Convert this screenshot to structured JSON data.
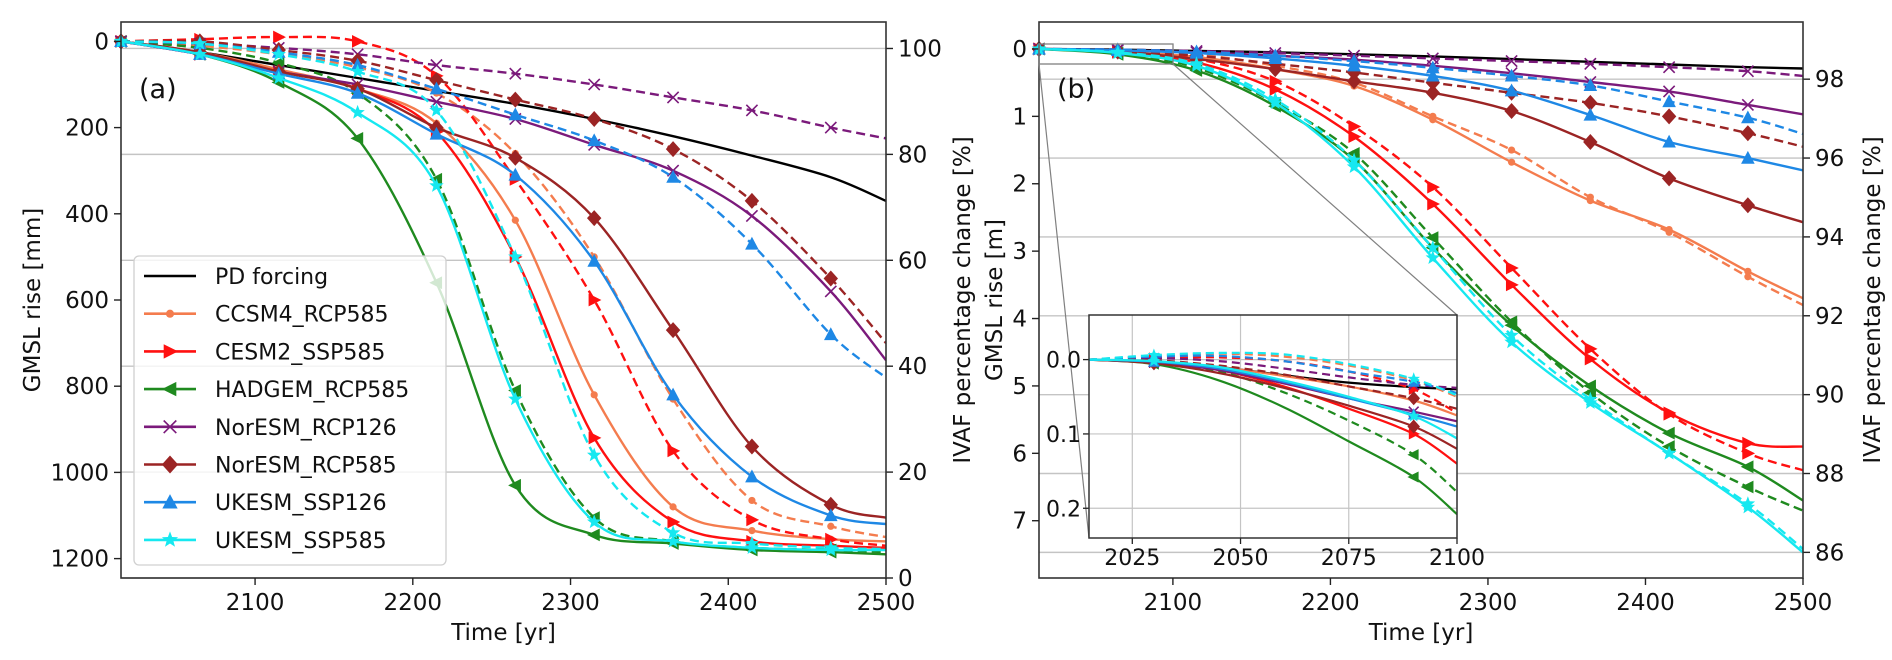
{
  "chart_data": [
    {
      "id": "a",
      "type": "line",
      "panel_label": "(a)",
      "xlabel": "Time [yr]",
      "ylabel": "GMSL rise [mm]",
      "ylabel_right": "IVAF percentage change [%]",
      "xlim": [
        2015,
        2500
      ],
      "ylim": [
        -45,
        1245
      ],
      "y_inverted": true,
      "xticks": [
        2100,
        2200,
        2300,
        2400,
        2500
      ],
      "yticks": [
        0,
        200,
        400,
        600,
        800,
        1000,
        1200
      ],
      "ylim_right": [
        0,
        105
      ],
      "yticks_right": [
        0,
        20,
        40,
        60,
        80,
        100
      ],
      "grid": "right-axis horizontal",
      "legend_position": "lower-left",
      "x": [
        2015,
        2065,
        2115,
        2165,
        2215,
        2265,
        2315,
        2365,
        2415,
        2465,
        2500
      ],
      "series": [
        {
          "name": "PD forcing",
          "color": "#000000",
          "marker": "none",
          "values": [
            0,
            25,
            55,
            85,
            115,
            145,
            180,
            220,
            265,
            315,
            370
          ]
        },
        {
          "name": "CCSM4_RCP585",
          "color": "#f47c4e",
          "marker": "dot",
          "values": [
            0,
            25,
            65,
            110,
            190,
            415,
            820,
            1080,
            1135,
            1155,
            1160
          ],
          "dashed_values": [
            0,
            10,
            30,
            60,
            120,
            260,
            500,
            830,
            1065,
            1125,
            1150
          ]
        },
        {
          "name": "CESM2_SSP585",
          "color": "#ff1010",
          "marker": "triangle-right",
          "values": [
            0,
            30,
            70,
            110,
            210,
            500,
            920,
            1115,
            1160,
            1170,
            1175
          ],
          "dashed_values": [
            0,
            -5,
            -10,
            0,
            80,
            320,
            600,
            950,
            1110,
            1155,
            1170
          ]
        },
        {
          "name": "HADGEM_RCP585",
          "color": "#1f8a1f",
          "marker": "triangle-left",
          "values": [
            0,
            30,
            95,
            225,
            560,
            1030,
            1145,
            1165,
            1180,
            1185,
            1190
          ],
          "dashed_values": [
            0,
            15,
            50,
            120,
            320,
            810,
            1105,
            1160,
            1175,
            1180,
            1185
          ]
        },
        {
          "name": "NorESM_RCP126",
          "color": "#7b1a7b",
          "marker": "x",
          "values": [
            0,
            30,
            70,
            100,
            140,
            180,
            240,
            300,
            405,
            580,
            740
          ],
          "dashed_values": [
            0,
            5,
            15,
            30,
            55,
            75,
            100,
            130,
            160,
            200,
            225
          ]
        },
        {
          "name": "NorESM_RCP585",
          "color": "#9b2424",
          "marker": "diamond",
          "values": [
            0,
            25,
            70,
            110,
            200,
            270,
            410,
            670,
            940,
            1075,
            1105
          ],
          "dashed_values": [
            0,
            0,
            20,
            45,
            90,
            135,
            180,
            250,
            370,
            550,
            700
          ]
        },
        {
          "name": "UKESM_SSP126",
          "color": "#1e88e5",
          "marker": "triangle-up",
          "values": [
            0,
            30,
            75,
            120,
            215,
            310,
            510,
            820,
            1010,
            1100,
            1120
          ],
          "dashed_values": [
            0,
            5,
            25,
            55,
            110,
            170,
            230,
            315,
            470,
            680,
            780
          ]
        },
        {
          "name": "UKESM_SSP585",
          "color": "#16e8f0",
          "marker": "star",
          "values": [
            0,
            30,
            85,
            165,
            335,
            830,
            1115,
            1160,
            1175,
            1180,
            1180
          ],
          "dashed_values": [
            0,
            5,
            30,
            70,
            160,
            500,
            960,
            1140,
            1165,
            1175,
            1178
          ]
        }
      ]
    },
    {
      "id": "b",
      "type": "line",
      "panel_label": "(b)",
      "xlabel": "Time [yr]",
      "ylabel": "GMSL rise [m]",
      "ylabel_right": "IVAF percentage change [%]",
      "xlim": [
        2015,
        2500
      ],
      "ylim": [
        -0.4,
        7.85
      ],
      "y_inverted": true,
      "xticks": [
        2100,
        2200,
        2300,
        2400,
        2500
      ],
      "yticks": [
        0,
        1,
        2,
        3,
        4,
        5,
        6,
        7
      ],
      "ylim_right": [
        85.35,
        99.45
      ],
      "yticks_right": [
        86,
        88,
        90,
        92,
        94,
        96,
        98
      ],
      "grid": "right-axis horizontal",
      "x": [
        2015,
        2065,
        2115,
        2165,
        2215,
        2265,
        2315,
        2365,
        2415,
        2465,
        2500
      ],
      "series": [
        {
          "name": "PD forcing",
          "values": [
            0,
            0.01,
            0.03,
            0.05,
            0.08,
            0.11,
            0.15,
            0.19,
            0.23,
            0.27,
            0.29
          ]
        },
        {
          "name": "CCSM4_RCP585",
          "values": [
            0,
            0.04,
            0.12,
            0.3,
            0.55,
            1.05,
            1.68,
            2.25,
            2.68,
            3.3,
            3.7
          ],
          "dashed_values": [
            0,
            0.02,
            0.08,
            0.25,
            0.5,
            1.0,
            1.5,
            2.2,
            2.72,
            3.38,
            3.8
          ]
        },
        {
          "name": "CESM2_SSP585",
          "values": [
            0,
            0.05,
            0.2,
            0.6,
            1.3,
            2.3,
            3.5,
            4.6,
            5.4,
            5.85,
            5.9
          ],
          "dashed_values": [
            0,
            0.04,
            0.15,
            0.48,
            1.15,
            2.05,
            3.25,
            4.45,
            5.42,
            6.0,
            6.25
          ]
        },
        {
          "name": "HADGEM_RCP585",
          "values": [
            0,
            0.08,
            0.32,
            0.85,
            1.65,
            2.95,
            4.1,
            5.0,
            5.7,
            6.2,
            6.7
          ],
          "dashed_values": [
            0,
            0.06,
            0.28,
            0.8,
            1.55,
            2.8,
            4.05,
            5.1,
            5.9,
            6.5,
            6.85
          ]
        },
        {
          "name": "NorESM_RCP126",
          "values": [
            0,
            0.02,
            0.05,
            0.1,
            0.16,
            0.25,
            0.36,
            0.49,
            0.63,
            0.83,
            0.97
          ],
          "dashed_values": [
            0,
            0.01,
            0.03,
            0.06,
            0.1,
            0.14,
            0.18,
            0.22,
            0.27,
            0.33,
            0.4
          ]
        },
        {
          "name": "NorESM_RCP585",
          "values": [
            0,
            0.04,
            0.15,
            0.3,
            0.48,
            0.65,
            0.92,
            1.38,
            1.92,
            2.32,
            2.57
          ],
          "dashed_values": [
            0,
            0.03,
            0.1,
            0.22,
            0.35,
            0.5,
            0.65,
            0.8,
            1.0,
            1.25,
            1.45
          ]
        },
        {
          "name": "UKESM_SSP126",
          "values": [
            0,
            0.02,
            0.06,
            0.14,
            0.25,
            0.4,
            0.62,
            0.98,
            1.38,
            1.62,
            1.8
          ],
          "dashed_values": [
            0,
            0.01,
            0.04,
            0.1,
            0.18,
            0.28,
            0.4,
            0.54,
            0.78,
            1.02,
            1.26
          ]
        },
        {
          "name": "UKESM_SSP585",
          "values": [
            0,
            0.06,
            0.25,
            0.8,
            1.75,
            3.1,
            4.35,
            5.25,
            6.0,
            6.8,
            7.47
          ],
          "dashed_values": [
            0,
            0.05,
            0.22,
            0.75,
            1.65,
            2.95,
            4.25,
            5.2,
            6.0,
            6.75,
            7.42
          ]
        }
      ],
      "inset": {
        "xlim": [
          2015,
          2100
        ],
        "ylim": [
          -0.06,
          0.24
        ],
        "y_inverted": true,
        "xticks": [
          2025,
          2050,
          2075,
          2100
        ],
        "yticks": [
          0.0,
          0.1,
          0.2
        ],
        "ytick_labels": [
          "0.0",
          "0.1",
          "0.2"
        ],
        "grid": true,
        "x": [
          2015,
          2030,
          2045,
          2060,
          2075,
          2090,
          2100
        ],
        "series": [
          {
            "name": "PD forcing",
            "values": [
              0,
              0.003,
              0.01,
              0.021,
              0.031,
              0.037,
              0.04
            ]
          },
          {
            "name": "CCSM4_RCP585",
            "values": [
              0,
              0.003,
              0.01,
              0.022,
              0.036,
              0.055,
              0.075
            ],
            "dashed_values": [
              0,
              -0.005,
              -0.008,
              -0.004,
              0.008,
              0.028,
              0.05
            ]
          },
          {
            "name": "CESM2_SSP585",
            "values": [
              0,
              0.004,
              0.014,
              0.036,
              0.066,
              0.1,
              0.14
            ],
            "dashed_values": [
              0,
              -0.002,
              -0.003,
              0.002,
              0.016,
              0.04,
              0.072
            ]
          },
          {
            "name": "HADGEM_RCP585",
            "values": [
              0,
              0.006,
              0.028,
              0.064,
              0.11,
              0.158,
              0.208
            ],
            "dashed_values": [
              0,
              0.004,
              0.016,
              0.044,
              0.082,
              0.128,
              0.178
            ]
          },
          {
            "name": "NorESM_RCP126",
            "values": [
              0,
              0.004,
              0.014,
              0.032,
              0.052,
              0.07,
              0.083
            ],
            "dashed_values": [
              0,
              -0.002,
              0.002,
              0.012,
              0.024,
              0.034,
              0.038
            ]
          },
          {
            "name": "NorESM_RCP585",
            "values": [
              0,
              0.005,
              0.018,
              0.038,
              0.062,
              0.09,
              0.12
            ],
            "dashed_values": [
              0,
              0.001,
              0.008,
              0.02,
              0.036,
              0.052,
              0.066
            ]
          },
          {
            "name": "UKESM_SSP126",
            "values": [
              0,
              0.003,
              0.012,
              0.03,
              0.052,
              0.074,
              0.09
            ],
            "dashed_values": [
              0,
              -0.004,
              -0.005,
              0.002,
              0.016,
              0.03,
              0.045
            ]
          },
          {
            "name": "UKESM_SSP585",
            "values": [
              0,
              0.002,
              0.01,
              0.028,
              0.05,
              0.076,
              0.106
            ],
            "dashed_values": [
              0,
              -0.006,
              -0.009,
              -0.007,
              0.006,
              0.026,
              0.048
            ]
          }
        ]
      }
    }
  ]
}
